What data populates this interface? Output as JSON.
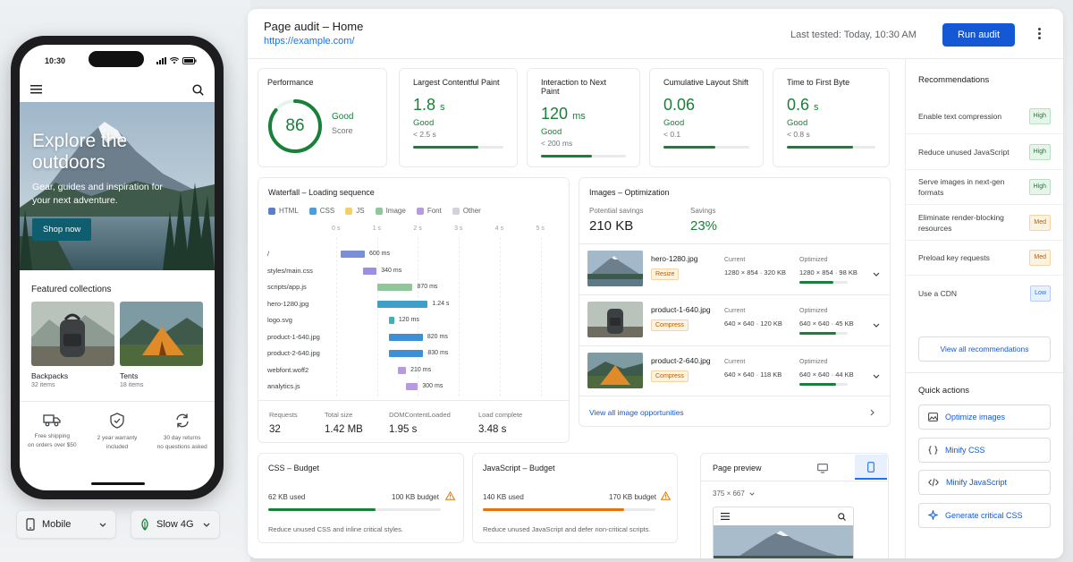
{
  "phone": {
    "time": "10:30",
    "hero": {
      "title": "Explore the outdoors",
      "subtitle": "Gear, guides and inspiration for your next adventure.",
      "cta": "Shop now"
    },
    "collections": {
      "title": "Featured collections",
      "items": [
        {
          "name": "Backpacks",
          "count": "32 items"
        },
        {
          "name": "Tents",
          "count": "18 items"
        }
      ]
    },
    "features": [
      {
        "icon": "truck-icon",
        "line1": "Free shipping",
        "line2": "on orders over $50"
      },
      {
        "icon": "shield-check-icon",
        "line1": "2 year warranty",
        "line2": "included"
      },
      {
        "icon": "refresh-icon",
        "line1": "30 day returns",
        "line2": "no questions asked"
      }
    ]
  },
  "device_selector": {
    "device": "Mobile",
    "network": "Slow 4G"
  },
  "header": {
    "title": "Page audit – Home",
    "url": "https://example.com/",
    "last_tested": "Last tested: Today, 10:30 AM",
    "run_button": "Run audit"
  },
  "performance": {
    "label": "Performance",
    "score": "86",
    "score_value": 86,
    "status": "Good",
    "caption": "Score"
  },
  "metrics": [
    {
      "label": "Largest Contentful Paint",
      "value": "1.8",
      "unit": "s",
      "status": "Good",
      "threshold": "< 2.5 s",
      "level": 0.72
    },
    {
      "label": "Interaction to Next Paint",
      "value": "120",
      "unit": "ms",
      "status": "Good",
      "threshold": "< 200 ms",
      "level": 0.6
    },
    {
      "label": "Cumulative Layout Shift",
      "value": "0.06",
      "unit": "",
      "status": "Good",
      "threshold": "< 0.1",
      "level": 0.6
    },
    {
      "label": "Time to First Byte",
      "value": "0.6",
      "unit": "s",
      "status": "Good",
      "threshold": "< 0.8 s",
      "level": 0.75
    }
  ],
  "waterfall": {
    "title": "Waterfall – Loading sequence",
    "legend": [
      {
        "name": "HTML",
        "color": "#5b7fc7"
      },
      {
        "name": "CSS",
        "color": "#4a9fe0"
      },
      {
        "name": "JS",
        "color": "#f2d16b"
      },
      {
        "name": "Image",
        "color": "#8fc79a"
      },
      {
        "name": "Font",
        "color": "#b79ae0"
      },
      {
        "name": "Other",
        "color": "#d0d4d9"
      }
    ],
    "axis": [
      "0 s",
      "1 s",
      "2 s",
      "3 s",
      "4 s",
      "5 s"
    ],
    "rows": [
      {
        "name": "/",
        "start": 0.1,
        "duration": 0.6,
        "label": "600 ms",
        "color": "#7b8fd6"
      },
      {
        "name": "styles/main.css",
        "start": 0.65,
        "duration": 0.34,
        "label": "340 ms",
        "color": "#9a8fe0"
      },
      {
        "name": "scripts/app.js",
        "start": 1.0,
        "duration": 0.87,
        "label": "870 ms",
        "color": "#8fc79a"
      },
      {
        "name": "hero-1280.jpg",
        "start": 1.0,
        "duration": 1.24,
        "label": "1.24 s",
        "color": "#3f9fc9"
      },
      {
        "name": "logo.svg",
        "start": 1.3,
        "duration": 0.12,
        "label": "120 ms",
        "color": "#3fb3b3"
      },
      {
        "name": "product-1-640.jpg",
        "start": 1.3,
        "duration": 0.82,
        "label": "820 ms",
        "color": "#3f8fd6"
      },
      {
        "name": "product-2-640.jpg",
        "start": 1.3,
        "duration": 0.83,
        "label": "830 ms",
        "color": "#3f8fd6"
      },
      {
        "name": "webfont.woff2",
        "start": 1.5,
        "duration": 0.21,
        "label": "210 ms",
        "color": "#b79ae0"
      },
      {
        "name": "analytics.js",
        "start": 1.7,
        "duration": 0.3,
        "label": "300 ms",
        "color": "#b79ae0"
      }
    ],
    "stats": [
      {
        "label": "Requests",
        "value": "32"
      },
      {
        "label": "Total size",
        "value": "1.42 MB"
      },
      {
        "label": "DOMContentLoaded",
        "value": "1.95 s"
      },
      {
        "label": "Load complete",
        "value": "3.48 s"
      }
    ]
  },
  "images": {
    "title": "Images – Optimization",
    "potential_label": "Potential savings",
    "potential_value": "210 KB",
    "savings_label": "Savings",
    "savings_value": "23%",
    "rows": [
      {
        "name": "hero-1280.jpg",
        "tag": "Resize",
        "current": "1280 × 854 · 320 KB",
        "optimized": "1280 × 854 · 98 KB",
        "level": 0.7
      },
      {
        "name": "product-1-640.jpg",
        "tag": "Compress",
        "current": "640 × 640 · 120 KB",
        "optimized": "640 × 640 · 45 KB",
        "level": 0.75
      },
      {
        "name": "product-2-640.jpg",
        "tag": "Compress",
        "current": "640 × 640 · 118 KB",
        "optimized": "640 × 640 · 44 KB",
        "level": 0.75
      }
    ],
    "current_label": "Current",
    "optimized_label": "Optimized",
    "view_all": "View all image opportunities"
  },
  "css_budget": {
    "title": "CSS – Budget",
    "used": "62 KB used",
    "budget": "100 KB budget",
    "level": 0.62,
    "note": "Reduce unused CSS and inline critical styles."
  },
  "js_budget": {
    "title": "JavaScript – Budget",
    "used": "140 KB used",
    "budget": "170 KB budget",
    "level": 0.82,
    "note": "Reduce unused JavaScript and defer non-critical scripts."
  },
  "preview": {
    "title": "Page preview",
    "size": "375 × 667"
  },
  "recommendations": {
    "title": "Recommendations",
    "items": [
      {
        "text": "Enable text compression",
        "priority": "High"
      },
      {
        "text": "Reduce unused JavaScript",
        "priority": "High"
      },
      {
        "text": "Serve images in next-gen formats",
        "priority": "High"
      },
      {
        "text": "Eliminate render-blocking resources",
        "priority": "Med"
      },
      {
        "text": "Preload key requests",
        "priority": "Med"
      },
      {
        "text": "Use a CDN",
        "priority": "Low"
      }
    ],
    "view_all": "View all recommendations"
  },
  "quick_actions": {
    "title": "Quick actions",
    "items": [
      {
        "label": "Optimize images",
        "icon": "image-icon"
      },
      {
        "label": "Minify CSS",
        "icon": "braces-icon"
      },
      {
        "label": "Minify JavaScript",
        "icon": "code-icon"
      },
      {
        "label": "Generate critical CSS",
        "icon": "sparkle-icon"
      }
    ]
  }
}
